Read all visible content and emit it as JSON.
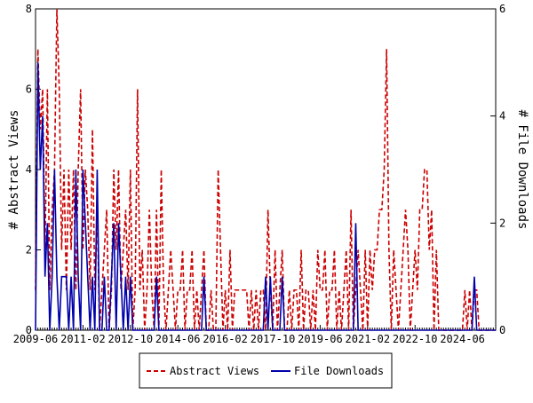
{
  "chart_data": {
    "type": "line",
    "y_label": "# Abstract Views",
    "y2_label": "# File Downloads",
    "categories": [
      "2009-06",
      null,
      null,
      null,
      null,
      null,
      null,
      null,
      null,
      null,
      null,
      null,
      null,
      null,
      null,
      null,
      null,
      null,
      null,
      null,
      "2011-02",
      null,
      null,
      null,
      null,
      null,
      null,
      null,
      null,
      null,
      null,
      null,
      null,
      null,
      null,
      null,
      null,
      null,
      null,
      null,
      "2012-10",
      null,
      null,
      null,
      null,
      null,
      null,
      null,
      null,
      null,
      null,
      null,
      null,
      null,
      null,
      null,
      null,
      null,
      null,
      null,
      "2014-06",
      null,
      null,
      null,
      null,
      null,
      null,
      null,
      null,
      null,
      null,
      null,
      null,
      null,
      null,
      null,
      null,
      null,
      null,
      null,
      "2016-02",
      null,
      null,
      null,
      null,
      null,
      null,
      null,
      null,
      null,
      null,
      null,
      null,
      null,
      null,
      null,
      null,
      null,
      null,
      null,
      "2017-10",
      null,
      null,
      null,
      null,
      null,
      null,
      null,
      null,
      null,
      null,
      null,
      null,
      null,
      null,
      null,
      null,
      null,
      null,
      null,
      "2019-06",
      null,
      null,
      null,
      null,
      null,
      null,
      null,
      null,
      null,
      null,
      null,
      null,
      null,
      null,
      null,
      null,
      null,
      null,
      null,
      "2021-02",
      null,
      null,
      null,
      null,
      null,
      null,
      null,
      null,
      null,
      null,
      null,
      null,
      null,
      null,
      null,
      null,
      null,
      null,
      null,
      "2022-10",
      null,
      null,
      null,
      null,
      null,
      null,
      null,
      null,
      null,
      null,
      null,
      null,
      null,
      null,
      null,
      null,
      null,
      null,
      null,
      "2024-06",
      null,
      null,
      null,
      null,
      null,
      null,
      null,
      null,
      null,
      null,
      null,
      null,
      null,
      null
    ],
    "series": [
      {
        "name": "Abstract Views",
        "color": "#cc0000",
        "dash": true,
        "axis": "y",
        "values": [
          1,
          7,
          5,
          6,
          2,
          6,
          1,
          3,
          4,
          8,
          6,
          2,
          4,
          1,
          4,
          2,
          4,
          1,
          4,
          6,
          2,
          4,
          3,
          1,
          5,
          1,
          3,
          0,
          1,
          2,
          3,
          0,
          1,
          4,
          2,
          4,
          1,
          2,
          3,
          1,
          4,
          0,
          1,
          6,
          1,
          2,
          0,
          1,
          3,
          1,
          0,
          3,
          0,
          4,
          1,
          0,
          1,
          2,
          1,
          0,
          1,
          1,
          2,
          0,
          1,
          1,
          2,
          0,
          1,
          0,
          1,
          2,
          0,
          0,
          1,
          0,
          0,
          4,
          2,
          0,
          1,
          0,
          2,
          0,
          1,
          1,
          1,
          1,
          1,
          1,
          0,
          1,
          0,
          1,
          0,
          1,
          1,
          0,
          3,
          1,
          0,
          2,
          0,
          1,
          2,
          0,
          0,
          1,
          0,
          1,
          1,
          0,
          2,
          0,
          1,
          1,
          0,
          1,
          0,
          2,
          1,
          1,
          2,
          0,
          1,
          1,
          2,
          0,
          1,
          0,
          1,
          2,
          0,
          3,
          0,
          1,
          2,
          1,
          0,
          2,
          0,
          2,
          1,
          2,
          2,
          3,
          3,
          4,
          7,
          2,
          0,
          2,
          1,
          0,
          1,
          2,
          3,
          2,
          0,
          1,
          2,
          1,
          3,
          3,
          4,
          4,
          2,
          3,
          0,
          2,
          0,
          0,
          0,
          0,
          0,
          0,
          0,
          0,
          0,
          0,
          0,
          1,
          0,
          1,
          0,
          1,
          1,
          0,
          0,
          0,
          0,
          0,
          0,
          0,
          0
        ]
      },
      {
        "name": "File Downloads",
        "color": "#0000aa",
        "dash": false,
        "axis": "y2",
        "values": [
          0,
          5,
          3,
          4,
          1,
          2,
          0,
          1,
          3,
          1,
          0,
          1,
          1,
          1,
          0,
          1,
          0,
          3,
          1,
          0,
          3,
          2,
          1,
          0,
          1,
          0,
          3,
          0,
          0,
          1,
          0,
          0,
          1,
          2,
          0,
          2,
          1,
          0,
          1,
          0,
          1,
          0,
          0,
          0,
          0,
          0,
          0,
          0,
          0,
          0,
          0,
          1,
          0,
          0,
          0,
          0,
          0,
          0,
          0,
          0,
          0,
          0,
          0,
          0,
          0,
          0,
          0,
          0,
          0,
          0,
          0,
          1,
          0,
          0,
          0,
          0,
          0,
          0,
          0,
          0,
          0,
          0,
          0,
          0,
          0,
          0,
          0,
          0,
          0,
          0,
          0,
          0,
          0,
          0,
          0,
          0,
          0,
          1,
          0,
          1,
          0,
          0,
          0,
          0,
          1,
          0,
          0,
          0,
          0,
          0,
          0,
          0,
          0,
          0,
          0,
          0,
          0,
          0,
          0,
          0,
          0,
          0,
          0,
          0,
          0,
          0,
          0,
          0,
          0,
          0,
          0,
          0,
          0,
          0,
          0,
          2,
          0,
          0,
          0,
          0,
          0,
          0,
          0,
          0,
          0,
          0,
          0,
          0,
          0,
          0,
          0,
          0,
          0,
          0,
          0,
          0,
          0,
          0,
          0,
          0,
          0,
          0,
          0,
          0,
          0,
          0,
          0,
          0,
          0,
          0,
          0,
          0,
          0,
          0,
          0,
          0,
          0,
          0,
          0,
          0,
          0,
          0,
          0,
          0,
          0,
          1,
          0,
          0,
          0,
          0,
          0,
          0,
          0,
          0,
          0
        ]
      }
    ],
    "ylim": [
      0,
      8
    ],
    "yticks": [
      0,
      2,
      4,
      6,
      8
    ],
    "y2lim": [
      0,
      6
    ],
    "y2ticks": [
      0,
      2,
      4,
      6
    ],
    "legend": "bottom"
  }
}
